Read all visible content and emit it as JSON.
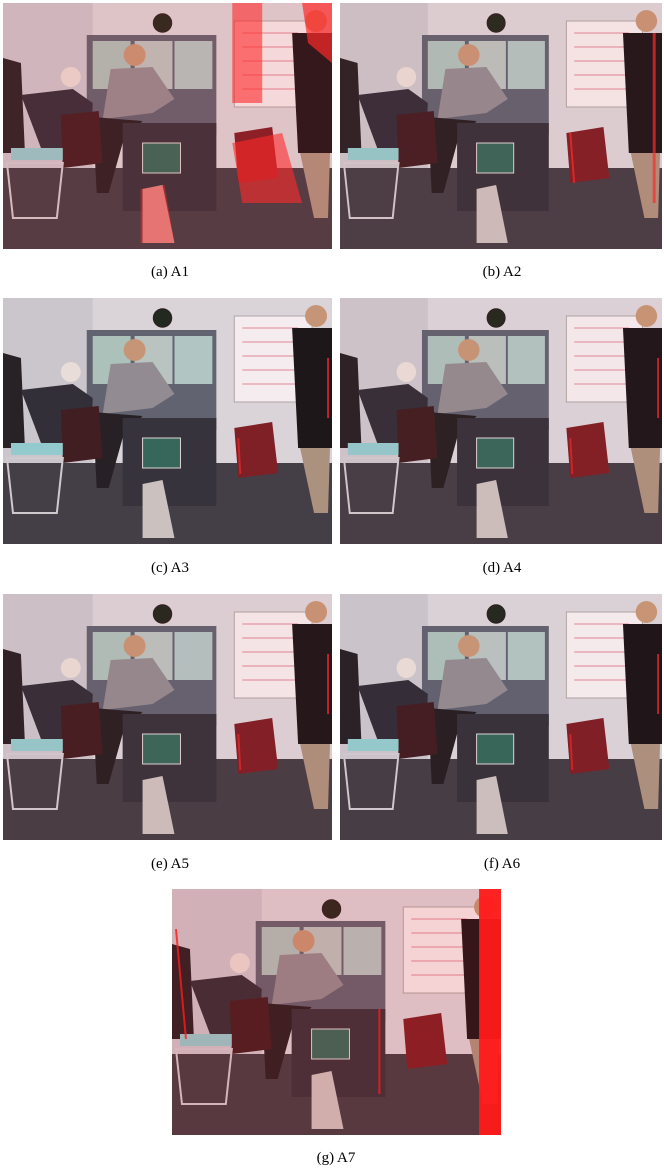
{
  "figure": {
    "panels": [
      {
        "id": "p1",
        "caption": "(a)  A1",
        "tint": "#ff2a2a",
        "tint_strength": 0.55,
        "artifact": "heavy-ghost"
      },
      {
        "id": "p2",
        "caption": "(b)  A2",
        "tint": "#ff2a2a",
        "tint_strength": 0.35,
        "artifact": "edge-fringe"
      },
      {
        "id": "p3",
        "caption": "(c)  A3",
        "tint": "#ff2a2a",
        "tint_strength": 0.15,
        "artifact": "light-fringe"
      },
      {
        "id": "p4",
        "caption": "(d)  A4",
        "tint": "#ff2a2a",
        "tint_strength": 0.25,
        "artifact": "light-fringe"
      },
      {
        "id": "p5",
        "caption": "(e)  A5",
        "tint": "#ff2a2a",
        "tint_strength": 0.3,
        "artifact": "light-fringe"
      },
      {
        "id": "p6",
        "caption": "(f)  A6",
        "tint": "#ff2a2a",
        "tint_strength": 0.2,
        "artifact": "light-fringe"
      },
      {
        "id": "p7",
        "caption": "(g)  A7",
        "tint": "#ff1a1a",
        "tint_strength": 0.6,
        "artifact": "right-band"
      }
    ]
  }
}
